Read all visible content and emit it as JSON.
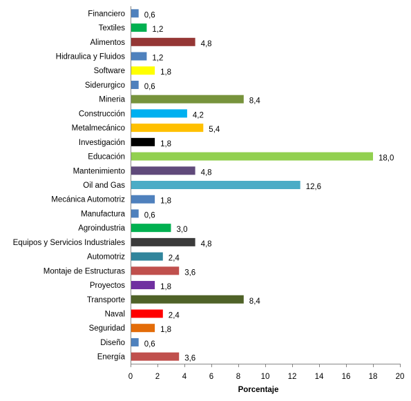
{
  "chart_data": {
    "type": "bar",
    "orientation": "horizontal",
    "title": "",
    "xlabel": "Porcentaje",
    "ylabel": "",
    "xlim": [
      0,
      20
    ],
    "xticks": [
      "0",
      "2",
      "4",
      "6",
      "8",
      "10",
      "12",
      "14",
      "16",
      "18",
      "20"
    ],
    "grid": false,
    "legend": "none",
    "categories": [
      "Financiero",
      "Textiles",
      "Alimentos",
      "Hidraulica y Fluidos",
      "Software",
      "Siderurgico",
      "Mineria",
      "Construcción",
      "Metalmecánico",
      "Investigación",
      "Educación",
      "Mantenimiento",
      "Oil and Gas",
      "Mecánica Automotriz",
      "Manufactura",
      "Agroindustria",
      "Equipos y Servicios Industriales",
      "Automotriz",
      "Montaje de Estructuras",
      "Proyectos",
      "Transporte",
      "Naval",
      "Seguridad",
      "Diseño",
      "Energía"
    ],
    "values": [
      0.6,
      1.2,
      4.8,
      1.2,
      1.8,
      0.6,
      8.4,
      4.2,
      5.4,
      1.8,
      18.0,
      4.8,
      12.6,
      1.8,
      0.6,
      3.0,
      4.8,
      2.4,
      3.6,
      1.8,
      8.4,
      2.4,
      1.8,
      0.6,
      3.6
    ],
    "value_labels": [
      "0,6",
      "1,2",
      "4,8",
      "1,2",
      "1,8",
      "0,6",
      "8,4",
      "4,2",
      "5,4",
      "1,8",
      "18,0",
      "4,8",
      "12,6",
      "1,8",
      "0,6",
      "3,0",
      "4,8",
      "2,4",
      "3,6",
      "1,8",
      "8,4",
      "2,4",
      "1,8",
      "0,6",
      "3,6"
    ],
    "colors": [
      "#4f81bd",
      "#00b050",
      "#953735",
      "#4f81bd",
      "#ffff00",
      "#4f81bd",
      "#77933c",
      "#00b0f0",
      "#ffc000",
      "#000000",
      "#92d050",
      "#604a7b",
      "#4bacc6",
      "#4f81bd",
      "#4f81bd",
      "#00b050",
      "#3b3b3b",
      "#31859c",
      "#c0504d",
      "#7030a0",
      "#4f6228",
      "#ff0000",
      "#e36c09",
      "#4f81bd",
      "#c0504d"
    ]
  }
}
